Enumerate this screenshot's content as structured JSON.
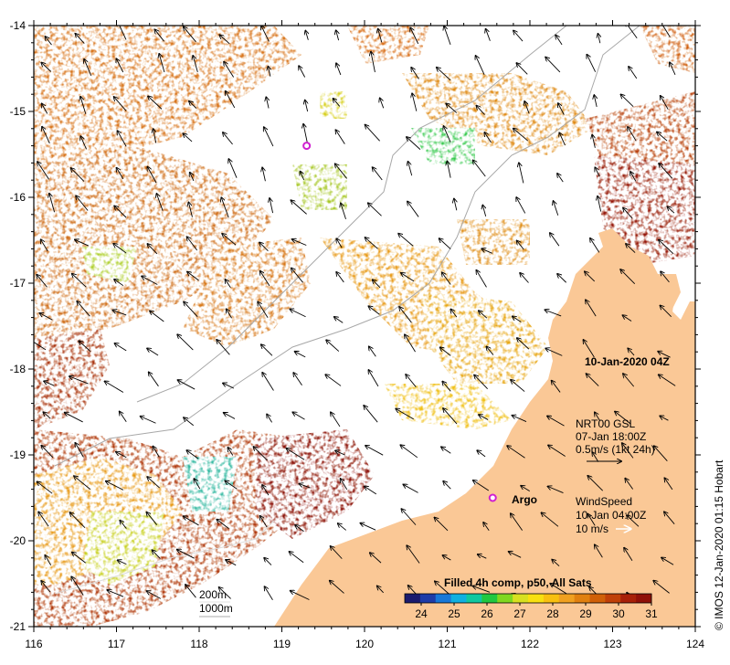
{
  "map": {
    "x_axis": {
      "ticks": [
        "116",
        "117",
        "118",
        "119",
        "120",
        "121",
        "122",
        "123",
        "124"
      ],
      "range": [
        116,
        124
      ]
    },
    "y_axis": {
      "ticks": [
        "-14",
        "-15",
        "-16",
        "-17",
        "-18",
        "-19",
        "-20",
        "-21"
      ],
      "range": [
        -21,
        -14
      ]
    },
    "date_label": "10-Jan-2020 04Z",
    "current_legend": {
      "source": "NRT00 GSL",
      "time": "07-Jan 18:00Z",
      "scale": "0.5m/s (1kt 24h)"
    },
    "wind_legend": {
      "title": "WindSpeed",
      "time": "10-Jan 04:00Z",
      "scale": "10 m/s"
    },
    "argo_label": "Argo",
    "argo_position": {
      "lon": 121.55,
      "lat": -19.5
    },
    "argo_position_2": {
      "lon": 119.3,
      "lat": -15.4
    },
    "depth_legend": {
      "deep": "200m",
      "deeper": "1000m"
    },
    "colorbar": {
      "title": "Filled 4h comp, p50, All Sats",
      "ticks": [
        "24",
        "25",
        "26",
        "27",
        "28",
        "29",
        "30",
        "31"
      ],
      "colors": [
        "#1a1a6e",
        "#1e3ca8",
        "#1878d8",
        "#10b0e0",
        "#10c8a0",
        "#20c840",
        "#80d820",
        "#d8e020",
        "#f8e010",
        "#f8c010",
        "#f0a020",
        "#e08010",
        "#d06008",
        "#c04008",
        "#a82008",
        "#901008"
      ]
    },
    "credit": "© IMOS 12-Jan-2020 01:15 Hobart",
    "colors": {
      "land": "#fac896",
      "water": "#ffffff",
      "contour": "#a8a8a8"
    }
  }
}
